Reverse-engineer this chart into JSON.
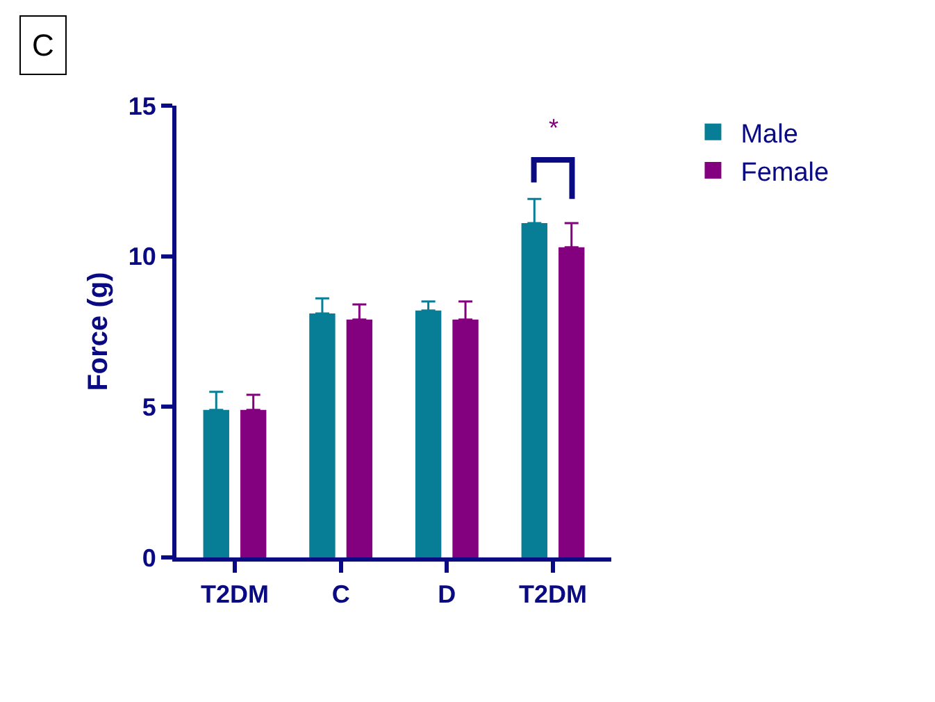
{
  "chart_data": {
    "type": "bar",
    "categories": [
      "T2DM",
      "C",
      "D",
      "T2DM"
    ],
    "ylabel": "Force (g)",
    "ylim": [
      0,
      15
    ],
    "yticks": [
      0,
      5,
      10,
      15
    ],
    "series": [
      {
        "name": "Male",
        "color": "#077e96",
        "values": [
          4.9,
          8.1,
          8.2,
          11.1
        ],
        "errors": [
          [
            4.9,
            5.5
          ],
          [
            8.1,
            8.6
          ],
          [
            8.2,
            8.5
          ],
          [
            11.1,
            11.9
          ]
        ]
      },
      {
        "name": "Female",
        "color": "#83007e",
        "values": [
          4.9,
          7.9,
          7.9,
          10.3
        ],
        "errors": [
          [
            4.9,
            5.4
          ],
          [
            7.9,
            8.4
          ],
          [
            7.9,
            8.5
          ],
          [
            10.3,
            11.1
          ]
        ]
      }
    ],
    "annotations": [
      "C",
      "*"
    ],
    "legend": "top right"
  }
}
